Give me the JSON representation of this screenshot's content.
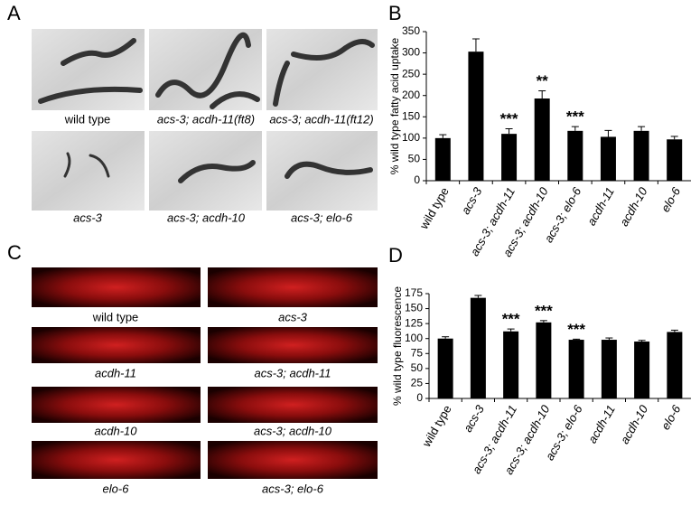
{
  "panel_a": {
    "label": "A",
    "captions": [
      "wild type",
      "acs-3; acdh-11(ft8)",
      "acs-3; acdh-11(ft12)",
      "acs-3",
      "acs-3; acdh-10",
      "acs-3; elo-6"
    ]
  },
  "panel_c": {
    "label": "C",
    "captions": [
      "wild type",
      "acs-3",
      "acdh-11",
      "acs-3; acdh-11",
      "acdh-10",
      "acs-3; acdh-10",
      "elo-6",
      "acs-3; elo-6"
    ]
  },
  "chart_data": [
    {
      "type": "bar",
      "label": "B",
      "ylabel": "% wild type fatty acid uptake",
      "categories": [
        "wild type",
        "acs-3",
        "acs-3; acdh-11",
        "acs-3; acdh-10",
        "acs-3; elo-6",
        "acdh-11",
        "acdh-10",
        "elo-6"
      ],
      "series": [
        {
          "color": "#000000",
          "values": [
            100,
            303,
            110,
            193,
            117,
            103,
            117,
            97
          ],
          "errors": [
            8,
            30,
            12,
            18,
            10,
            15,
            10,
            7
          ]
        }
      ],
      "value_annotations": [
        null,
        null,
        "***",
        "**",
        "***",
        null,
        null,
        null
      ],
      "ylim": [
        0,
        350
      ],
      "yticks": [
        0,
        50,
        100,
        150,
        200,
        250,
        300,
        350
      ]
    },
    {
      "type": "bar",
      "label": "D",
      "ylabel": "% wild type fluorescence",
      "categories": [
        "wild type",
        "acs-3",
        "acs-3; acdh-11",
        "acs-3; acdh-10",
        "acs-3; elo-6",
        "acdh-11",
        "acdh-10",
        "elo-6"
      ],
      "series": [
        {
          "color": "#000000",
          "values": [
            100,
            168,
            112,
            127,
            98,
            98,
            95,
            111
          ],
          "errors": [
            3,
            4,
            4,
            3,
            1,
            3,
            2,
            3
          ]
        }
      ],
      "value_annotations": [
        null,
        null,
        "***",
        "***",
        "***",
        null,
        null,
        null
      ],
      "ylim": [
        0,
        175
      ],
      "yticks": [
        0,
        25,
        50,
        75,
        100,
        125,
        150,
        175
      ]
    }
  ]
}
